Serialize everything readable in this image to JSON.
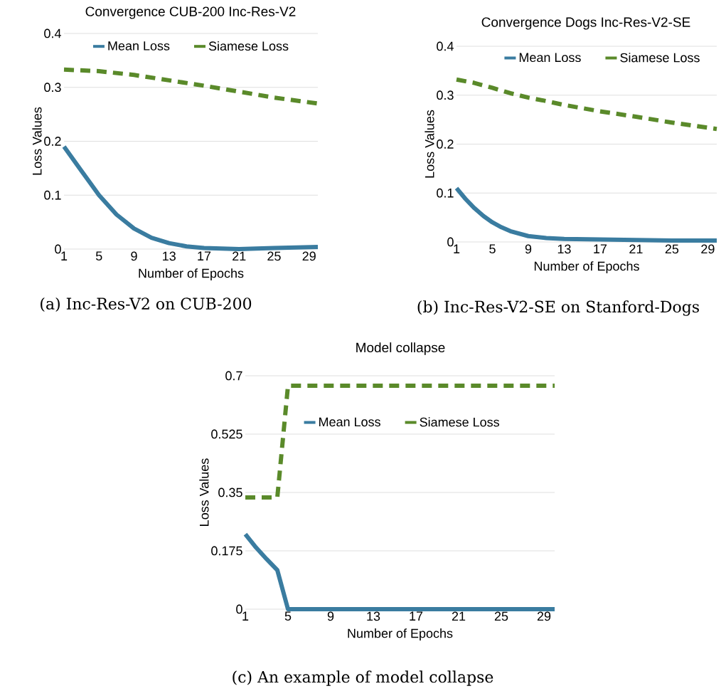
{
  "chart_data": [
    {
      "type": "line",
      "title": "Convergence CUB-200 Inc-Res-V2",
      "xlabel": "Number of Epochs",
      "ylabel": "Loss Values",
      "xlim": [
        1,
        30
      ],
      "xticks": [
        1,
        5,
        9,
        13,
        17,
        21,
        25,
        29
      ],
      "ylim": [
        0,
        0.4
      ],
      "yticks": [
        0,
        0.1,
        0.2,
        0.3,
        0.4
      ],
      "grid": "y",
      "legend": "top",
      "annotations": [
        "(a) Inc-Res-V2 on CUB-200"
      ],
      "series": [
        {
          "name": "Mean Loss",
          "color": "#3a7ca0",
          "line_style": "solid",
          "x": [
            1,
            3,
            5,
            7,
            9,
            11,
            13,
            15,
            17,
            19,
            21,
            25,
            30
          ],
          "values": [
            0.19,
            0.145,
            0.1,
            0.064,
            0.038,
            0.021,
            0.011,
            0.005,
            0.002,
            0.001,
            0.0,
            0.002,
            0.004
          ]
        },
        {
          "name": "Siamese Loss",
          "color": "#5a8a2a",
          "line_style": "dashed",
          "x": [
            1,
            5,
            9,
            13,
            17,
            21,
            25,
            30
          ],
          "values": [
            0.333,
            0.33,
            0.323,
            0.313,
            0.303,
            0.292,
            0.281,
            0.27
          ]
        }
      ]
    },
    {
      "type": "line",
      "title": "Convergence Dogs Inc-Res-V2-SE",
      "xlabel": "Number of Epochs",
      "ylabel": "Loss Values",
      "xlim": [
        1,
        30
      ],
      "xticks": [
        1,
        5,
        9,
        13,
        17,
        21,
        25,
        29
      ],
      "ylim": [
        0,
        0.4
      ],
      "yticks": [
        0,
        0.1,
        0.2,
        0.3,
        0.4
      ],
      "grid": "y",
      "legend": "top",
      "annotations": [
        "(b) Inc-Res-V2-SE on Stanford-Dogs"
      ],
      "series": [
        {
          "name": "Mean Loss",
          "color": "#3a7ca0",
          "line_style": "solid",
          "x": [
            1,
            2,
            3,
            4,
            5,
            6,
            7,
            9,
            11,
            13,
            17,
            21,
            25,
            30
          ],
          "values": [
            0.11,
            0.088,
            0.069,
            0.053,
            0.04,
            0.03,
            0.022,
            0.012,
            0.008,
            0.006,
            0.005,
            0.004,
            0.003,
            0.003
          ]
        },
        {
          "name": "Siamese Loss",
          "color": "#5a8a2a",
          "line_style": "dashed",
          "x": [
            1,
            3,
            5,
            7,
            9,
            11,
            13,
            17,
            21,
            25,
            30
          ],
          "values": [
            0.332,
            0.325,
            0.315,
            0.304,
            0.295,
            0.288,
            0.28,
            0.267,
            0.256,
            0.244,
            0.231
          ]
        }
      ]
    },
    {
      "type": "line",
      "title": "Model collapse",
      "xlabel": "Number of Epochs",
      "ylabel": "Loss Values",
      "xlim": [
        1,
        30
      ],
      "xticks": [
        1,
        5,
        9,
        13,
        17,
        21,
        25,
        29
      ],
      "ylim": [
        0,
        0.7
      ],
      "yticks": [
        0,
        0.175,
        0.35,
        0.525,
        0.7
      ],
      "grid": "y",
      "legend": "top",
      "annotations": [
        "(c) An example of model collapse"
      ],
      "series": [
        {
          "name": "Mean Loss",
          "color": "#3a7ca0",
          "line_style": "solid",
          "x": [
            1,
            2,
            3,
            4,
            5,
            30
          ],
          "values": [
            0.225,
            0.185,
            0.15,
            0.117,
            0.0,
            0.0
          ]
        },
        {
          "name": "Siamese Loss",
          "color": "#5a8a2a",
          "line_style": "dashed",
          "x": [
            1,
            4,
            5,
            30
          ],
          "values": [
            0.335,
            0.335,
            0.67,
            0.67
          ]
        }
      ]
    }
  ]
}
